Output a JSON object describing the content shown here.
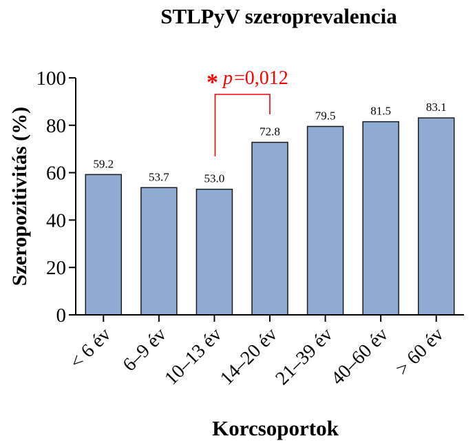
{
  "chart_data": {
    "type": "bar",
    "title": "STLPyV szeroprevalencia",
    "xlabel": "Korcsoportok",
    "ylabel": "Szeropozitivitás (%)",
    "categories": [
      "< 6 év",
      "6–9 év",
      "10–13 év",
      "14–20 év",
      "21–39 év",
      "40–60 év",
      "> 60 év"
    ],
    "values": [
      59.2,
      53.7,
      53.0,
      72.8,
      79.5,
      81.5,
      83.1
    ],
    "value_labels": [
      "59.2",
      "53.7",
      "53.0",
      "72.8",
      "79.5",
      "81.5",
      "83.1"
    ],
    "ylim": [
      0,
      100
    ],
    "yticks": [
      0,
      20,
      40,
      60,
      80,
      100
    ],
    "grid": false,
    "bar_color": "#8eabd3",
    "annotation": {
      "star": "*",
      "p_symbol": "p",
      "p_value": "=0,012",
      "between": [
        2,
        3
      ],
      "color": "#ff0000"
    }
  }
}
